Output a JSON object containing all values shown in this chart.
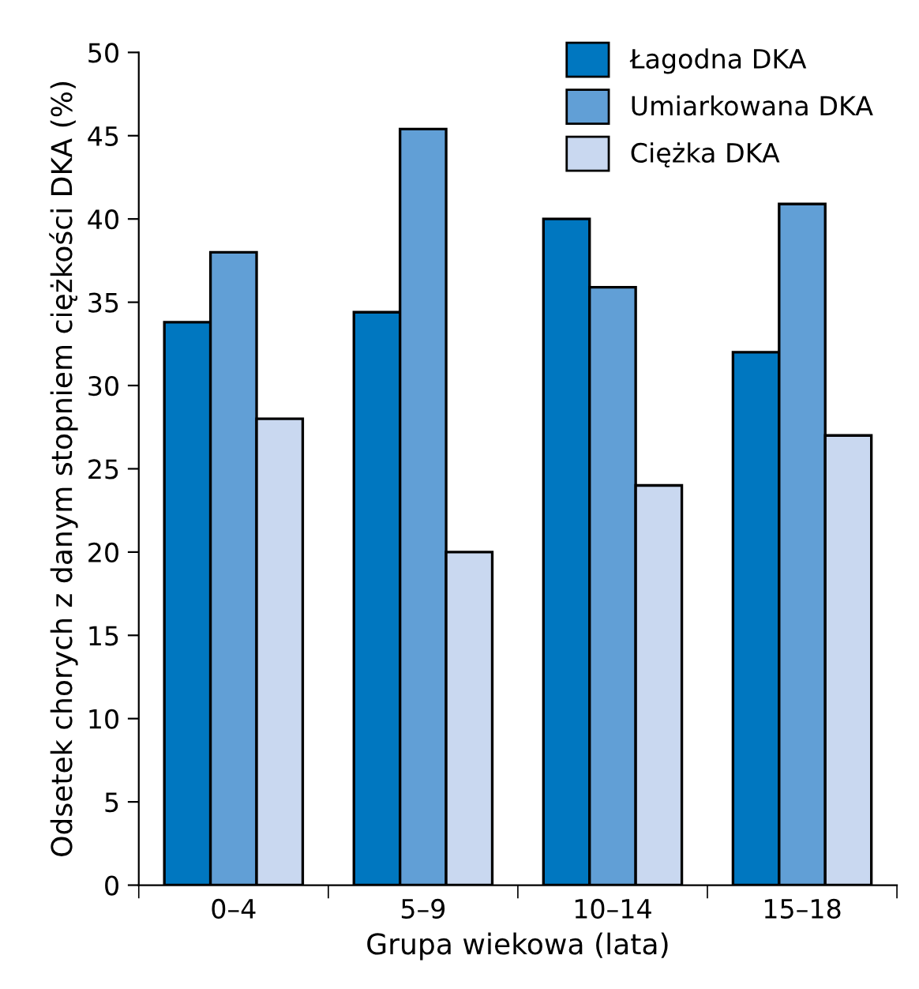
{
  "chart_data": {
    "type": "bar",
    "xlabel": "Grupa wiekowa (lata)",
    "ylabel": "Odsetek chorych z danym stopniem ciężkości DKA (%)",
    "categories": [
      "0–4",
      "5–9",
      "10–14",
      "15–18"
    ],
    "series": [
      {
        "name": "Łagodna DKA",
        "color": "#0077c0",
        "values": [
          33.8,
          34.4,
          40,
          32
        ]
      },
      {
        "name": "Umiarkowana DKA",
        "color": "#619fd6",
        "values": [
          38,
          45.4,
          35.9,
          40.9
        ]
      },
      {
        "name": "Ciężka DKA",
        "color": "#c9d8f0",
        "values": [
          28,
          20,
          24,
          27
        ]
      }
    ],
    "ylim": [
      0,
      50
    ],
    "yticks": [
      0,
      5,
      10,
      15,
      20,
      25,
      30,
      35,
      40,
      45,
      50
    ],
    "grid": false,
    "legend": "top right"
  }
}
